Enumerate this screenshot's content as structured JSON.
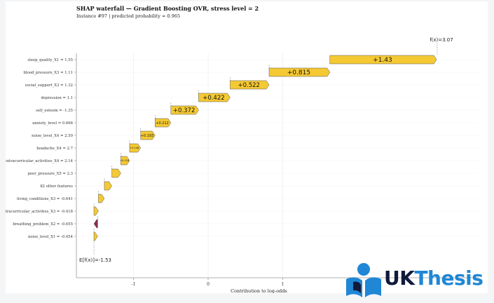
{
  "chart_data": {
    "type": "waterfall",
    "title": "SHAP waterfall — Gradient Boosting OVR, stress level = 2",
    "subtitle": "Instance #97 | predicted probability = 0.965",
    "xlabel": "Contribution to log-odds",
    "ylabel": "",
    "x_ticks": [
      "-1",
      "0",
      "1"
    ],
    "base_value": -1.53,
    "base_label": "E[f(x)]=-1.53",
    "final_value": 3.07,
    "final_label": "f(x)=3.07",
    "grid": true,
    "features": [
      {
        "label": "sleep_quality_X1 = 1.55",
        "value": 1.43,
        "value_label": "+1.43"
      },
      {
        "label": "blood_pressure_X3 = 1.11",
        "value": 0.815,
        "value_label": "+0.815"
      },
      {
        "label": "social_support_X3 = 1.32",
        "value": 0.522,
        "value_label": "+0.522"
      },
      {
        "label": "depression = 1.1",
        "value": 0.422,
        "value_label": "+0.422"
      },
      {
        "label": "self_esteem = -1.35",
        "value": 0.372,
        "value_label": "+0.372"
      },
      {
        "label": "anxiety_level = 0.666",
        "value": 0.212,
        "value_label": "+0.212"
      },
      {
        "label": "noise_level_X4 = 2.59",
        "value": 0.193,
        "value_label": "+0.193"
      },
      {
        "label": "headache_X4 = 2.7",
        "value": 0.148,
        "value_label": "+0.148"
      },
      {
        "label": "extracurricular_activities_X4 = 2.14",
        "value": 0.118,
        "value_label": "+0.118"
      },
      {
        "label": "peer_pressure_X5 = 2.3",
        "value": 0.12,
        "value_label": ""
      },
      {
        "label": "82 other features",
        "value": 0.1,
        "value_label": ""
      },
      {
        "label": "living_conditions_X3 = -0.641",
        "value": 0.08,
        "value_label": ""
      },
      {
        "label": "extracurricular_activities_X3 = -0.418",
        "value": 0.06,
        "value_label": ""
      },
      {
        "label": "breathing_problem_X2 = -0.655",
        "value": -0.05,
        "value_label": ""
      },
      {
        "label": "noise_level_X1 = -0.454",
        "value": 0.05,
        "value_label": ""
      }
    ]
  },
  "colors": {
    "positive": "#f5c934",
    "negative": "#8b2a52",
    "logo_dark": "#111a3a",
    "logo_blue": "#1f87d6"
  },
  "logo": {
    "uk": "UK",
    "thesis": "Thesis",
    "icon": "reading-student-icon"
  }
}
